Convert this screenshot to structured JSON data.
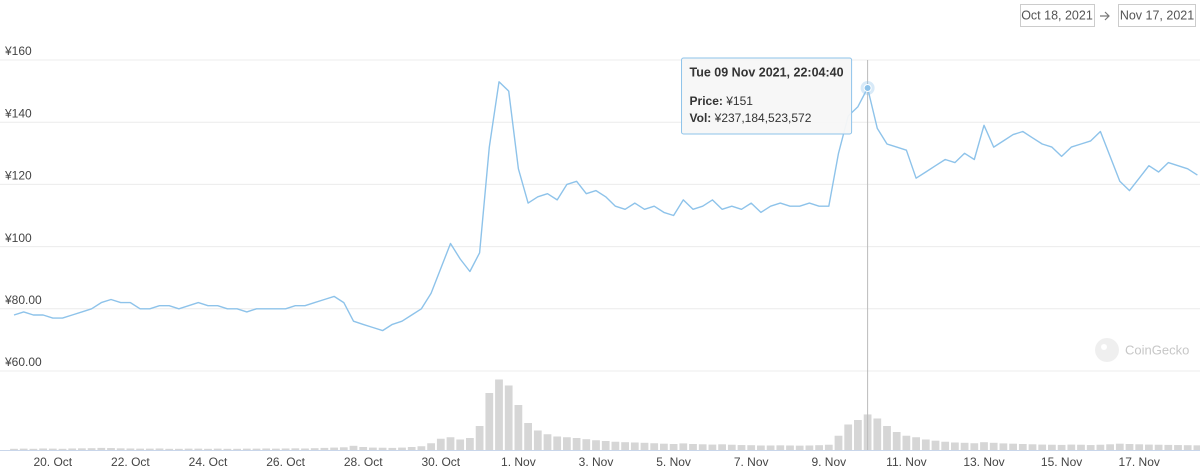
{
  "chart_data": {
    "type": "line",
    "categories": [
      null,
      null,
      null,
      null,
      "20. Oct",
      null,
      null,
      null,
      null,
      null,
      null,
      null,
      "22. Oct",
      null,
      null,
      null,
      null,
      null,
      null,
      null,
      "24. Oct",
      null,
      null,
      null,
      null,
      null,
      null,
      null,
      "26. Oct",
      null,
      null,
      null,
      null,
      null,
      null,
      null,
      "28. Oct",
      null,
      null,
      null,
      null,
      null,
      null,
      null,
      "30. Oct",
      null,
      null,
      null,
      null,
      null,
      null,
      null,
      "1. Nov",
      null,
      null,
      null,
      null,
      null,
      null,
      null,
      "3. Nov",
      null,
      null,
      null,
      null,
      null,
      null,
      null,
      "5. Nov",
      null,
      null,
      null,
      null,
      null,
      null,
      null,
      "7. Nov",
      null,
      null,
      null,
      null,
      null,
      null,
      null,
      "9. Nov",
      null,
      null,
      null,
      null,
      null,
      null,
      null,
      "11. Nov",
      null,
      null,
      null,
      null,
      null,
      null,
      null,
      "13. Nov",
      null,
      null,
      null,
      null,
      null,
      null,
      null,
      "15. Nov",
      null,
      null,
      null,
      null,
      null,
      null,
      null,
      "17. Nov",
      null,
      null,
      null,
      null,
      null,
      null
    ],
    "series": [
      {
        "color": "#8ec3ea",
        "values": [
          78,
          79,
          78,
          78,
          77,
          77,
          78,
          79,
          80,
          82,
          83,
          82,
          82,
          80,
          80,
          81,
          81,
          80,
          81,
          82,
          81,
          81,
          80,
          80,
          79,
          80,
          80,
          80,
          80,
          81,
          81,
          82,
          83,
          84,
          82,
          76,
          75,
          74,
          73,
          75,
          76,
          78,
          80,
          85,
          93,
          101,
          96,
          92,
          98,
          132,
          153,
          150,
          125,
          114,
          116,
          117,
          115,
          120,
          121,
          117,
          118,
          116,
          113,
          112,
          114,
          112,
          113,
          111,
          110,
          115,
          112,
          113,
          115,
          112,
          113,
          112,
          114,
          111,
          113,
          114,
          113,
          113,
          114,
          113,
          113,
          130,
          142,
          145,
          151,
          138,
          133,
          132,
          131,
          122,
          124,
          126,
          128,
          127,
          130,
          128,
          139,
          132,
          134,
          136,
          137,
          135,
          133,
          132,
          129,
          132,
          133,
          134,
          137,
          129,
          121,
          118,
          122,
          126,
          124,
          127,
          126,
          125,
          123
        ]
      },
      {
        "type": "bar",
        "axis": "y2",
        "color": "#d6d6d6",
        "values": [
          8000000000,
          9000000000,
          8000000000,
          10000000000,
          9000000000,
          8000000000,
          10000000000,
          11000000000,
          12000000000,
          14000000000,
          13000000000,
          11000000000,
          10000000000,
          9000000000,
          9000000000,
          10000000000,
          8000000000,
          8000000000,
          9000000000,
          9000000000,
          8000000000,
          9000000000,
          8000000000,
          8000000000,
          9000000000,
          9000000000,
          10000000000,
          9000000000,
          10000000000,
          11000000000,
          10000000000,
          12000000000,
          14000000000,
          16000000000,
          18000000000,
          28000000000,
          20000000000,
          16000000000,
          15000000000,
          14000000000,
          16000000000,
          20000000000,
          25000000000,
          45000000000,
          75000000000,
          85000000000,
          70000000000,
          80000000000,
          160000000000,
          380000000000,
          470000000000,
          430000000000,
          300000000000,
          180000000000,
          130000000000,
          105000000000,
          90000000000,
          85000000000,
          80000000000,
          72000000000,
          65000000000,
          60000000000,
          55000000000,
          52000000000,
          50000000000,
          48000000000,
          45000000000,
          42000000000,
          40000000000,
          44000000000,
          40000000000,
          38000000000,
          36000000000,
          38000000000,
          35000000000,
          33000000000,
          32000000000,
          30000000000,
          30000000000,
          31000000000,
          30000000000,
          29000000000,
          30000000000,
          32000000000,
          35000000000,
          95000000000,
          170000000000,
          200000000000,
          237184523572,
          210000000000,
          160000000000,
          120000000000,
          95000000000,
          85000000000,
          70000000000,
          62000000000,
          55000000000,
          50000000000,
          48000000000,
          45000000000,
          52000000000,
          48000000000,
          44000000000,
          42000000000,
          40000000000,
          38000000000,
          36000000000,
          35000000000,
          34000000000,
          36000000000,
          35000000000,
          33000000000,
          35000000000,
          38000000000,
          42000000000,
          40000000000,
          38000000000,
          36000000000,
          35000000000,
          34000000000,
          33000000000,
          32000000000,
          31000000000
        ]
      }
    ],
    "ylim": [
      60,
      160
    ],
    "yticks": [
      {
        "value": 60,
        "label": "¥60.00"
      },
      {
        "value": 80,
        "label": "¥80.00"
      },
      {
        "value": 100,
        "label": "¥100"
      },
      {
        "value": 120,
        "label": "¥120"
      },
      {
        "value": 140,
        "label": "¥140"
      },
      {
        "value": 160,
        "label": "¥160"
      }
    ],
    "y2lim": [
      0,
      500000000000
    ],
    "grid": true,
    "tooltip": {
      "title": "Tue 09 Nov 2021, 22:04:40",
      "rows": [
        {
          "label": "Price:",
          "value": "¥151"
        },
        {
          "label": "Vol:",
          "value": "¥237,184,523,572"
        }
      ]
    }
  },
  "date_range": {
    "from": "Oct 18, 2021",
    "to": "Nov 17, 2021"
  },
  "watermark": "CoinGecko"
}
